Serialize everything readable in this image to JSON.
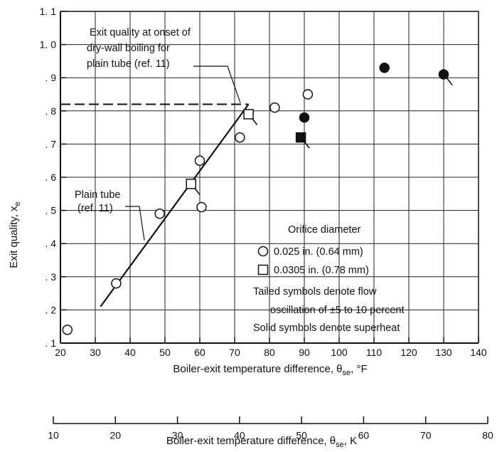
{
  "chart_data": {
    "type": "scatter",
    "xlabel": "Boiler-exit temperature difference, θ",
    "xlabel_sub": "se",
    "xlabel_unit": ", °F",
    "x2label": "Boiler-exit temperature difference, θ",
    "x2label_sub": "se",
    "x2label_unit": ", K",
    "ylabel": "Exit quality, x",
    "ylabel_sub": "e",
    "xlim": [
      20,
      140
    ],
    "ylim": [
      0.1,
      1.1
    ],
    "x2lim": [
      10,
      80
    ],
    "x_ticks": [
      "20",
      "30",
      "40",
      "50",
      "60",
      "70",
      "80",
      "90",
      "100",
      "110",
      "120",
      "130",
      "140"
    ],
    "x2_ticks": [
      "10",
      "20",
      "30",
      "40",
      "50",
      "60",
      "70",
      "80"
    ],
    "y_ticks": [
      {
        "v": 0.1,
        "label": ". 1"
      },
      {
        "v": 0.2,
        "label": ". 2"
      },
      {
        "v": 0.3,
        "label": ". 3"
      },
      {
        "v": 0.4,
        "label": ". 4"
      },
      {
        "v": 0.5,
        "label": ". 5"
      },
      {
        "v": 0.6,
        "label": ". 6"
      },
      {
        "v": 0.7,
        "label": ". 7"
      },
      {
        "v": 0.8,
        "label": ". 8"
      },
      {
        "v": 0.9,
        "label": ". 9"
      },
      {
        "v": 1.0,
        "label": "1. 0"
      },
      {
        "v": 1.1,
        "label": "1. 1"
      }
    ],
    "series": [
      {
        "name": "0.025 in. (0.64 mm)",
        "marker": "circle",
        "points": [
          {
            "x": 22,
            "y": 0.14,
            "solid": false,
            "tail": false
          },
          {
            "x": 36,
            "y": 0.28,
            "solid": false,
            "tail": false
          },
          {
            "x": 48.5,
            "y": 0.49,
            "solid": false,
            "tail": false
          },
          {
            "x": 60,
            "y": 0.65,
            "solid": false,
            "tail": false
          },
          {
            "x": 60.5,
            "y": 0.51,
            "solid": false,
            "tail": false
          },
          {
            "x": 71.5,
            "y": 0.72,
            "solid": false,
            "tail": false
          },
          {
            "x": 81.5,
            "y": 0.81,
            "solid": false,
            "tail": false
          },
          {
            "x": 91,
            "y": 0.85,
            "solid": false,
            "tail": false
          },
          {
            "x": 90,
            "y": 0.78,
            "solid": true,
            "tail": false
          },
          {
            "x": 113,
            "y": 0.93,
            "solid": true,
            "tail": false
          },
          {
            "x": 130,
            "y": 0.91,
            "solid": true,
            "tail": true
          }
        ]
      },
      {
        "name": "0.0305 in. (0.78 mm)",
        "marker": "square",
        "points": [
          {
            "x": 57.5,
            "y": 0.58,
            "solid": false,
            "tail": true
          },
          {
            "x": 74,
            "y": 0.79,
            "solid": false,
            "tail": true
          },
          {
            "x": 89,
            "y": 0.72,
            "solid": true,
            "tail": true
          }
        ]
      }
    ],
    "plain_tube_line": {
      "x": [
        31.5,
        74
      ],
      "y": [
        0.21,
        0.82
      ]
    },
    "dry_wall_line": {
      "x": [
        20,
        74
      ],
      "y": 0.82
    },
    "annotations": {
      "dry_wall": [
        "Exit quality at onset of",
        "dry-wall boiling for",
        "plain tube (ref. 11)"
      ],
      "plain_tube": [
        "Plain tube",
        "(ref. 11)"
      ],
      "legend_title": "Orifice diameter",
      "notes": [
        "Tailed symbols denote flow",
        "oscillation of ±5 to 10 percent",
        "Solid symbols denote superheat"
      ]
    },
    "grid": true,
    "legend_position": "lower-right"
  }
}
